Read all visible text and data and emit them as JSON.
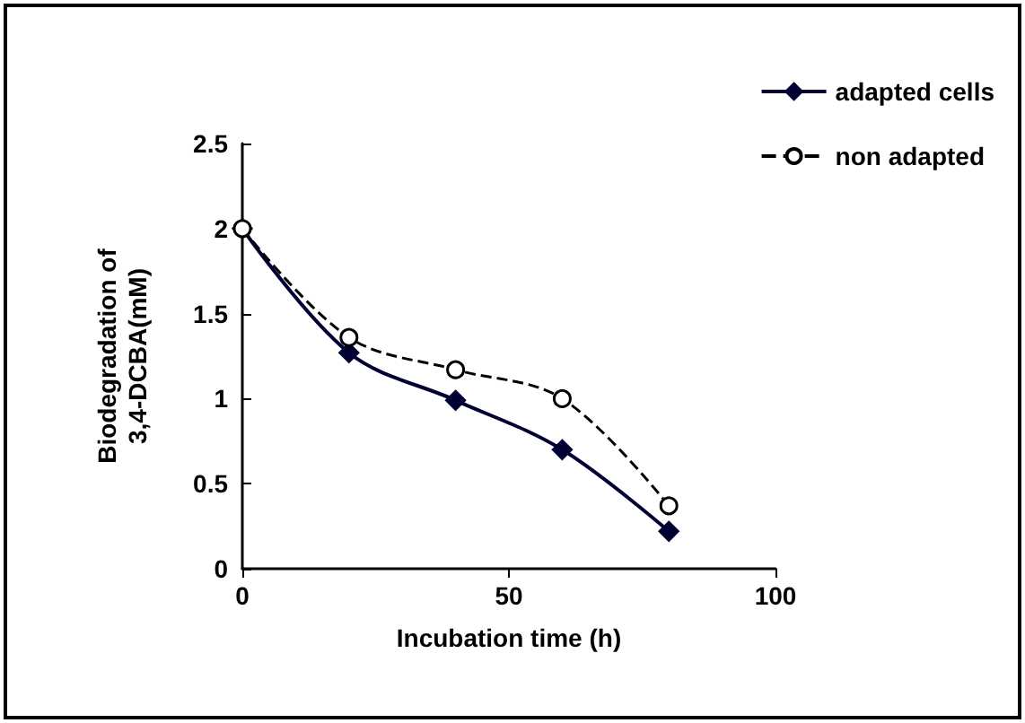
{
  "chart_data": {
    "type": "line",
    "xlabel": "Incubation time (h)",
    "ylabel": "Biodegradation of\n3,4-DCBA(mM)",
    "x": [
      0,
      20,
      40,
      60,
      80
    ],
    "series": [
      {
        "name": "adapted cells",
        "color": "#000033",
        "values": [
          2,
          1.27,
          0.99,
          0.7,
          0.22
        ],
        "marker": "diamond",
        "line_style": "solid"
      },
      {
        "name": "non adapted",
        "color": "#000000",
        "values": [
          2,
          1.36,
          1.17,
          1.0,
          0.37
        ],
        "marker": "circle",
        "line_style": "dashed"
      }
    ],
    "xlim": [
      0,
      100
    ],
    "xticks": [
      0,
      50,
      100
    ],
    "ylim": [
      0,
      2.5
    ],
    "yticks": [
      0,
      0.5,
      1,
      1.5,
      2,
      2.5
    ],
    "grid": false,
    "legend": "top right"
  }
}
